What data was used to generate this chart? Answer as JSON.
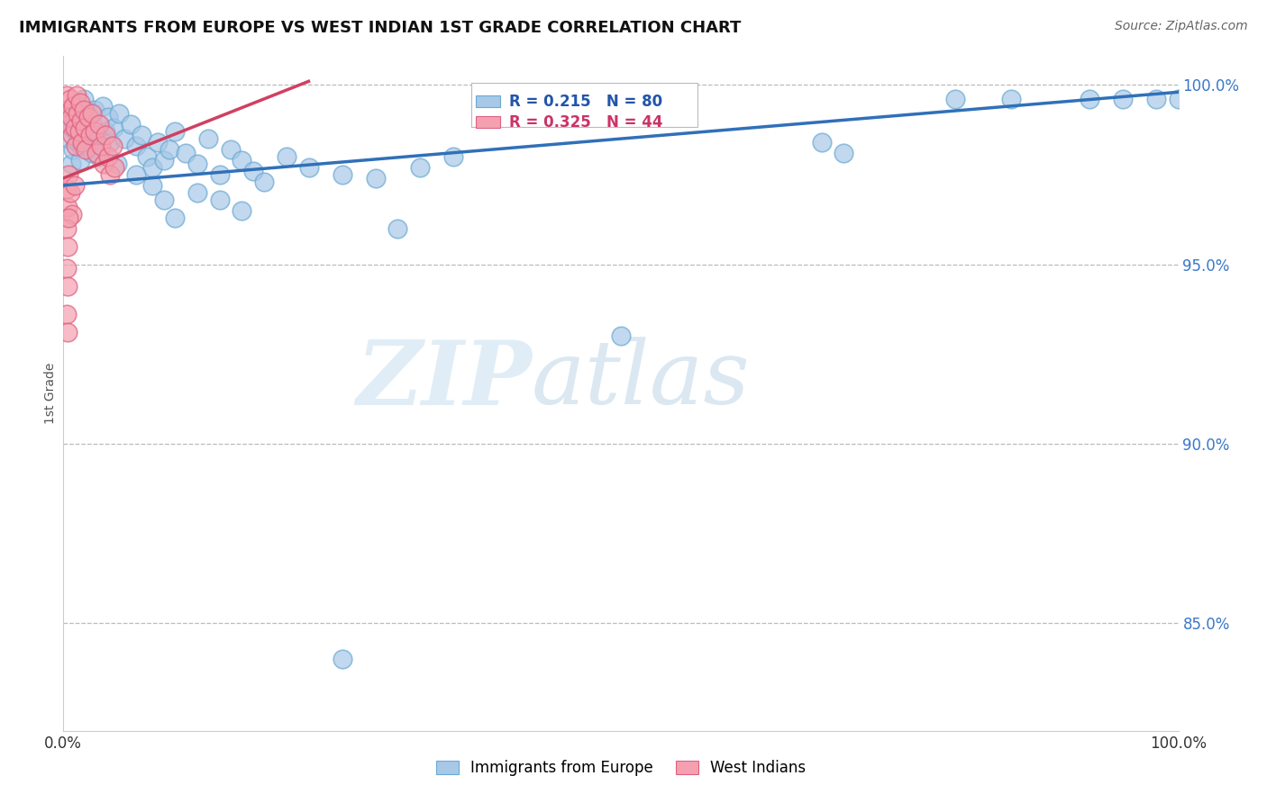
{
  "title": "IMMIGRANTS FROM EUROPE VS WEST INDIAN 1ST GRADE CORRELATION CHART",
  "source": "Source: ZipAtlas.com",
  "ylabel": "1st Grade",
  "R_blue": 0.215,
  "N_blue": 80,
  "R_pink": 0.325,
  "N_pink": 44,
  "blue_color": "#a8c8e8",
  "blue_edge_color": "#6aaad4",
  "pink_color": "#f4a0b0",
  "pink_edge_color": "#e06080",
  "blue_line_color": "#3070b8",
  "pink_line_color": "#d04060",
  "legend_blue_label": "Immigrants from Europe",
  "legend_pink_label": "West Indians",
  "watermark_zip": "ZIP",
  "watermark_atlas": "atlas",
  "background_color": "#ffffff",
  "y_min": 0.82,
  "y_max": 1.008,
  "x_min": 0.0,
  "x_max": 1.0,
  "y_ticks": [
    0.85,
    0.9,
    0.95,
    1.0
  ],
  "y_tick_labels": [
    "85.0%",
    "90.0%",
    "95.0%",
    "100.0%"
  ],
  "x_ticks": [
    0.0,
    1.0
  ],
  "x_tick_labels": [
    "0.0%",
    "100.0%"
  ],
  "blue_line_x": [
    0.0,
    1.0
  ],
  "blue_line_y": [
    0.972,
    0.998
  ],
  "pink_line_x": [
    0.0,
    0.22
  ],
  "pink_line_y": [
    0.974,
    1.001
  ],
  "blue_scatter": [
    [
      0.003,
      0.99
    ],
    [
      0.005,
      0.985
    ],
    [
      0.006,
      0.992
    ],
    [
      0.007,
      0.978
    ],
    [
      0.008,
      0.988
    ],
    [
      0.009,
      0.982
    ],
    [
      0.01,
      0.995
    ],
    [
      0.011,
      0.987
    ],
    [
      0.012,
      0.991
    ],
    [
      0.013,
      0.984
    ],
    [
      0.014,
      0.993
    ],
    [
      0.015,
      0.979
    ],
    [
      0.016,
      0.989
    ],
    [
      0.017,
      0.983
    ],
    [
      0.018,
      0.996
    ],
    [
      0.019,
      0.986
    ],
    [
      0.02,
      0.991
    ],
    [
      0.022,
      0.985
    ],
    [
      0.024,
      0.988
    ],
    [
      0.026,
      0.981
    ],
    [
      0.028,
      0.993
    ],
    [
      0.03,
      0.986
    ],
    [
      0.032,
      0.98
    ],
    [
      0.035,
      0.994
    ],
    [
      0.038,
      0.987
    ],
    [
      0.04,
      0.991
    ],
    [
      0.042,
      0.984
    ],
    [
      0.045,
      0.988
    ],
    [
      0.048,
      0.978
    ],
    [
      0.05,
      0.992
    ],
    [
      0.055,
      0.985
    ],
    [
      0.06,
      0.989
    ],
    [
      0.065,
      0.983
    ],
    [
      0.07,
      0.986
    ],
    [
      0.075,
      0.98
    ],
    [
      0.08,
      0.977
    ],
    [
      0.085,
      0.984
    ],
    [
      0.09,
      0.979
    ],
    [
      0.095,
      0.982
    ],
    [
      0.1,
      0.987
    ],
    [
      0.11,
      0.981
    ],
    [
      0.12,
      0.978
    ],
    [
      0.13,
      0.985
    ],
    [
      0.14,
      0.975
    ],
    [
      0.15,
      0.982
    ],
    [
      0.16,
      0.979
    ],
    [
      0.17,
      0.976
    ],
    [
      0.18,
      0.973
    ],
    [
      0.2,
      0.98
    ],
    [
      0.22,
      0.977
    ],
    [
      0.25,
      0.975
    ],
    [
      0.28,
      0.974
    ],
    [
      0.32,
      0.977
    ],
    [
      0.35,
      0.98
    ],
    [
      0.38,
      0.996
    ],
    [
      0.4,
      0.996
    ],
    [
      0.42,
      0.996
    ],
    [
      0.44,
      0.996
    ],
    [
      0.46,
      0.996
    ],
    [
      0.48,
      0.996
    ],
    [
      0.5,
      0.996
    ],
    [
      0.52,
      0.996
    ],
    [
      0.54,
      0.996
    ],
    [
      0.56,
      0.996
    ],
    [
      0.68,
      0.984
    ],
    [
      0.7,
      0.981
    ],
    [
      0.8,
      0.996
    ],
    [
      0.85,
      0.996
    ],
    [
      0.92,
      0.996
    ],
    [
      0.95,
      0.996
    ],
    [
      0.98,
      0.996
    ],
    [
      1.0,
      0.996
    ],
    [
      0.1,
      0.963
    ],
    [
      0.3,
      0.96
    ],
    [
      0.5,
      0.93
    ],
    [
      0.25,
      0.84
    ],
    [
      0.065,
      0.975
    ],
    [
      0.08,
      0.972
    ],
    [
      0.09,
      0.968
    ],
    [
      0.12,
      0.97
    ],
    [
      0.14,
      0.968
    ],
    [
      0.16,
      0.965
    ]
  ],
  "pink_scatter": [
    [
      0.003,
      0.997
    ],
    [
      0.004,
      0.993
    ],
    [
      0.005,
      0.989
    ],
    [
      0.006,
      0.996
    ],
    [
      0.007,
      0.991
    ],
    [
      0.008,
      0.986
    ],
    [
      0.009,
      0.994
    ],
    [
      0.01,
      0.988
    ],
    [
      0.011,
      0.983
    ],
    [
      0.012,
      0.997
    ],
    [
      0.013,
      0.992
    ],
    [
      0.014,
      0.987
    ],
    [
      0.015,
      0.995
    ],
    [
      0.016,
      0.99
    ],
    [
      0.017,
      0.984
    ],
    [
      0.018,
      0.993
    ],
    [
      0.019,
      0.988
    ],
    [
      0.02,
      0.982
    ],
    [
      0.022,
      0.991
    ],
    [
      0.024,
      0.986
    ],
    [
      0.026,
      0.992
    ],
    [
      0.028,
      0.987
    ],
    [
      0.03,
      0.981
    ],
    [
      0.032,
      0.989
    ],
    [
      0.034,
      0.983
    ],
    [
      0.036,
      0.978
    ],
    [
      0.038,
      0.986
    ],
    [
      0.04,
      0.98
    ],
    [
      0.042,
      0.975
    ],
    [
      0.044,
      0.983
    ],
    [
      0.046,
      0.977
    ],
    [
      0.003,
      0.971
    ],
    [
      0.004,
      0.966
    ],
    [
      0.005,
      0.975
    ],
    [
      0.006,
      0.97
    ],
    [
      0.008,
      0.964
    ],
    [
      0.01,
      0.972
    ],
    [
      0.003,
      0.96
    ],
    [
      0.004,
      0.955
    ],
    [
      0.005,
      0.963
    ],
    [
      0.003,
      0.949
    ],
    [
      0.004,
      0.944
    ],
    [
      0.003,
      0.936
    ],
    [
      0.004,
      0.931
    ]
  ]
}
